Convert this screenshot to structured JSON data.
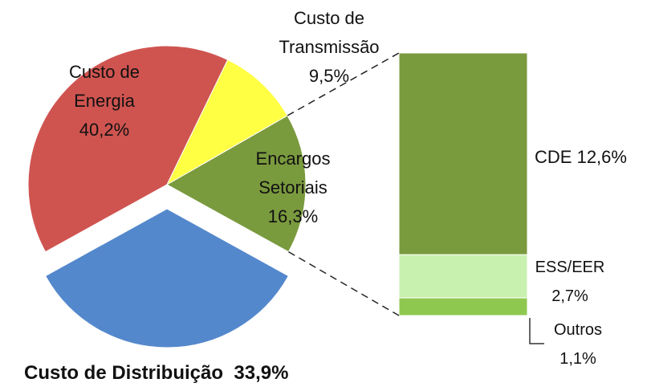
{
  "chart_data": [
    {
      "type": "pie",
      "labels": [
        "Custo de Energia",
        "Custo de Transmissão",
        "Encargos Setoriais",
        "Custo de Distribuição"
      ],
      "values": [
        40.2,
        9.5,
        16.3,
        33.9
      ],
      "value_labels": [
        "40,2%",
        "9,5%",
        "16,3%",
        "33,9%"
      ],
      "colors": [
        "#cf5450",
        "#ffff44",
        "#7a9a3e",
        "#5488cc"
      ]
    },
    {
      "type": "bar",
      "categories": [
        "CDE",
        "ESS/EER",
        "Outros"
      ],
      "values": [
        12.6,
        2.7,
        1.1
      ],
      "value_labels": [
        "12,6%",
        "2,7%",
        "1,1%"
      ],
      "colors": [
        "#7a9a3e",
        "#c8f0ae",
        "#8fc84f"
      ]
    }
  ]
}
